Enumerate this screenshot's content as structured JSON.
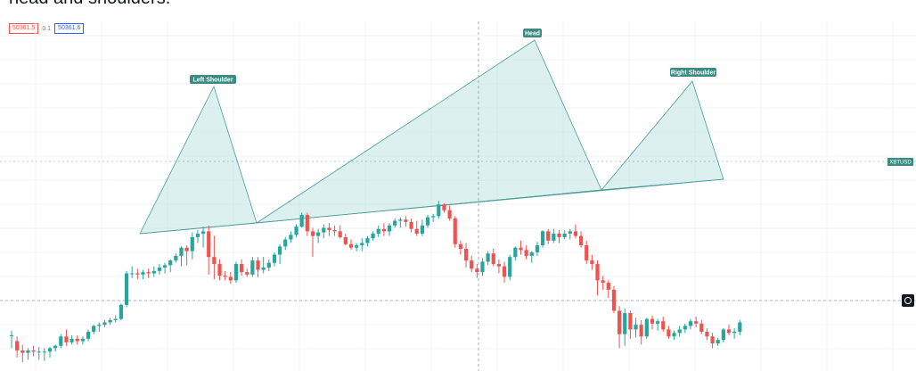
{
  "heading": "head and shoulders.",
  "price_bar": {
    "bid": "50361.5",
    "spread": "0.1",
    "ask": "50361.6"
  },
  "symbol": "XBTUSD",
  "colors": {
    "up": "#26a69a",
    "down": "#ef5350",
    "pattern_fill": "#b2dfdb",
    "pattern_line": "#4a9d95",
    "label_bg": "#3d8a80"
  },
  "icons": {
    "crosshair": "crosshair-icon"
  },
  "chart_data": {
    "type": "candlestick",
    "title": "",
    "pattern": "Head and Shoulders",
    "annotations": [
      "Left Shoulder",
      "Head",
      "Right Shoulder"
    ],
    "ohlc": [
      [
        291,
        295,
        280,
        291
      ],
      [
        286,
        290,
        272,
        278
      ],
      [
        278,
        283,
        268,
        276
      ],
      [
        276,
        280,
        270,
        278
      ],
      [
        278,
        282,
        273,
        277
      ],
      [
        277,
        281,
        270,
        277
      ],
      [
        277,
        280,
        269,
        277
      ],
      [
        277,
        281,
        272,
        280
      ],
      [
        280,
        283,
        277,
        282
      ],
      [
        282,
        292,
        280,
        290
      ],
      [
        290,
        296,
        282,
        285
      ],
      [
        285,
        291,
        283,
        288
      ],
      [
        288,
        291,
        283,
        286
      ],
      [
        286,
        290,
        283,
        288
      ],
      [
        288,
        296,
        286,
        294
      ],
      [
        294,
        300,
        292,
        299
      ],
      [
        299,
        302,
        294,
        300
      ],
      [
        300,
        304,
        298,
        302
      ],
      [
        302,
        306,
        300,
        304
      ],
      [
        304,
        308,
        302,
        305
      ],
      [
        305,
        318,
        304,
        317
      ],
      [
        317,
        346,
        315,
        344
      ],
      [
        344,
        350,
        340,
        344
      ],
      [
        344,
        348,
        339,
        343
      ],
      [
        343,
        347,
        339,
        345
      ],
      [
        345,
        348,
        340,
        344
      ],
      [
        344,
        350,
        341,
        346
      ],
      [
        346,
        352,
        343,
        349
      ],
      [
        349,
        353,
        344,
        351
      ],
      [
        351,
        356,
        345,
        355
      ],
      [
        355,
        361,
        353,
        359
      ],
      [
        359,
        367,
        350,
        366
      ],
      [
        366,
        368,
        351,
        363
      ],
      [
        363,
        379,
        356,
        375
      ],
      [
        375,
        381,
        370,
        378
      ],
      [
        378,
        384,
        366,
        380
      ],
      [
        380,
        385,
        343,
        358
      ],
      [
        358,
        376,
        339,
        352
      ],
      [
        352,
        356,
        338,
        342
      ],
      [
        342,
        346,
        338,
        341
      ],
      [
        341,
        345,
        335,
        338
      ],
      [
        338,
        354,
        336,
        352
      ],
      [
        352,
        356,
        342,
        345
      ],
      [
        345,
        348,
        341,
        343
      ],
      [
        343,
        358,
        341,
        355
      ],
      [
        355,
        358,
        341,
        347
      ],
      [
        347,
        358,
        344,
        349
      ],
      [
        349,
        356,
        346,
        353
      ],
      [
        353,
        362,
        350,
        360
      ],
      [
        360,
        369,
        352,
        367
      ],
      [
        367,
        375,
        364,
        373
      ],
      [
        373,
        380,
        370,
        377
      ],
      [
        377,
        386,
        375,
        384
      ],
      [
        384,
        396,
        383,
        394
      ],
      [
        394,
        396,
        376,
        380
      ],
      [
        380,
        383,
        358,
        376
      ],
      [
        376,
        382,
        370,
        379
      ],
      [
        379,
        386,
        374,
        383
      ],
      [
        383,
        387,
        376,
        381
      ],
      [
        381,
        385,
        376,
        380
      ],
      [
        380,
        385,
        374,
        375
      ],
      [
        375,
        378,
        368,
        369
      ],
      [
        369,
        373,
        364,
        366
      ],
      [
        366,
        370,
        363,
        368
      ],
      [
        368,
        374,
        363,
        370
      ],
      [
        370,
        376,
        367,
        374
      ],
      [
        374,
        380,
        372,
        378
      ],
      [
        378,
        385,
        375,
        382
      ],
      [
        382,
        387,
        376,
        380
      ],
      [
        380,
        387,
        376,
        385
      ],
      [
        385,
        391,
        383,
        389
      ],
      [
        389,
        392,
        383,
        390
      ],
      [
        390,
        393,
        384,
        388
      ],
      [
        388,
        391,
        379,
        382
      ],
      [
        382,
        389,
        376,
        378
      ],
      [
        378,
        390,
        376,
        385
      ],
      [
        385,
        394,
        383,
        392
      ],
      [
        392,
        395,
        388,
        393
      ],
      [
        393,
        406,
        391,
        403
      ],
      [
        403,
        404,
        396,
        398
      ],
      [
        398,
        402,
        389,
        391
      ],
      [
        391,
        393,
        366,
        369
      ],
      [
        369,
        372,
        360,
        365
      ],
      [
        365,
        370,
        349,
        355
      ],
      [
        355,
        359,
        345,
        348
      ],
      [
        348,
        352,
        340,
        345
      ],
      [
        345,
        357,
        342,
        354
      ],
      [
        354,
        363,
        351,
        361
      ],
      [
        361,
        365,
        350,
        352
      ],
      [
        352,
        356,
        344,
        350
      ],
      [
        350,
        354,
        336,
        341
      ],
      [
        341,
        360,
        338,
        358
      ],
      [
        358,
        367,
        355,
        366
      ],
      [
        366,
        372,
        360,
        364
      ],
      [
        364,
        368,
        356,
        359
      ],
      [
        359,
        363,
        353,
        362
      ],
      [
        362,
        371,
        359,
        368
      ],
      [
        368,
        381,
        366,
        380
      ],
      [
        380,
        382,
        369,
        372
      ],
      [
        372,
        382,
        370,
        378
      ],
      [
        378,
        381,
        370,
        375
      ],
      [
        375,
        381,
        373,
        378
      ],
      [
        378,
        382,
        373,
        380
      ],
      [
        380,
        386,
        374,
        376
      ],
      [
        376,
        380,
        366,
        368
      ],
      [
        368,
        372,
        352,
        355
      ],
      [
        355,
        360,
        347,
        352
      ],
      [
        352,
        355,
        325,
        338
      ],
      [
        338,
        342,
        330,
        336
      ],
      [
        336,
        338,
        323,
        330
      ],
      [
        330,
        333,
        310,
        312
      ],
      [
        312,
        316,
        280,
        292
      ],
      [
        292,
        314,
        282,
        310
      ],
      [
        310,
        312,
        288,
        296
      ],
      [
        296,
        306,
        289,
        300
      ],
      [
        300,
        304,
        283,
        290
      ],
      [
        290,
        306,
        288,
        305
      ],
      [
        305,
        308,
        296,
        301
      ],
      [
        301,
        305,
        295,
        303
      ],
      [
        303,
        307,
        294,
        296
      ],
      [
        296,
        299,
        288,
        290
      ],
      [
        290,
        295,
        287,
        293
      ],
      [
        293,
        299,
        290,
        296
      ],
      [
        296,
        301,
        293,
        299
      ],
      [
        299,
        305,
        296,
        303
      ],
      [
        303,
        307,
        298,
        301
      ],
      [
        301,
        304,
        292,
        294
      ],
      [
        294,
        297,
        287,
        290
      ],
      [
        290,
        293,
        280,
        284
      ],
      [
        284,
        289,
        282,
        287
      ],
      [
        287,
        297,
        285,
        296
      ],
      [
        296,
        300,
        291,
        293
      ],
      [
        293,
        297,
        288,
        294
      ],
      [
        294,
        304,
        291,
        302
      ]
    ]
  }
}
